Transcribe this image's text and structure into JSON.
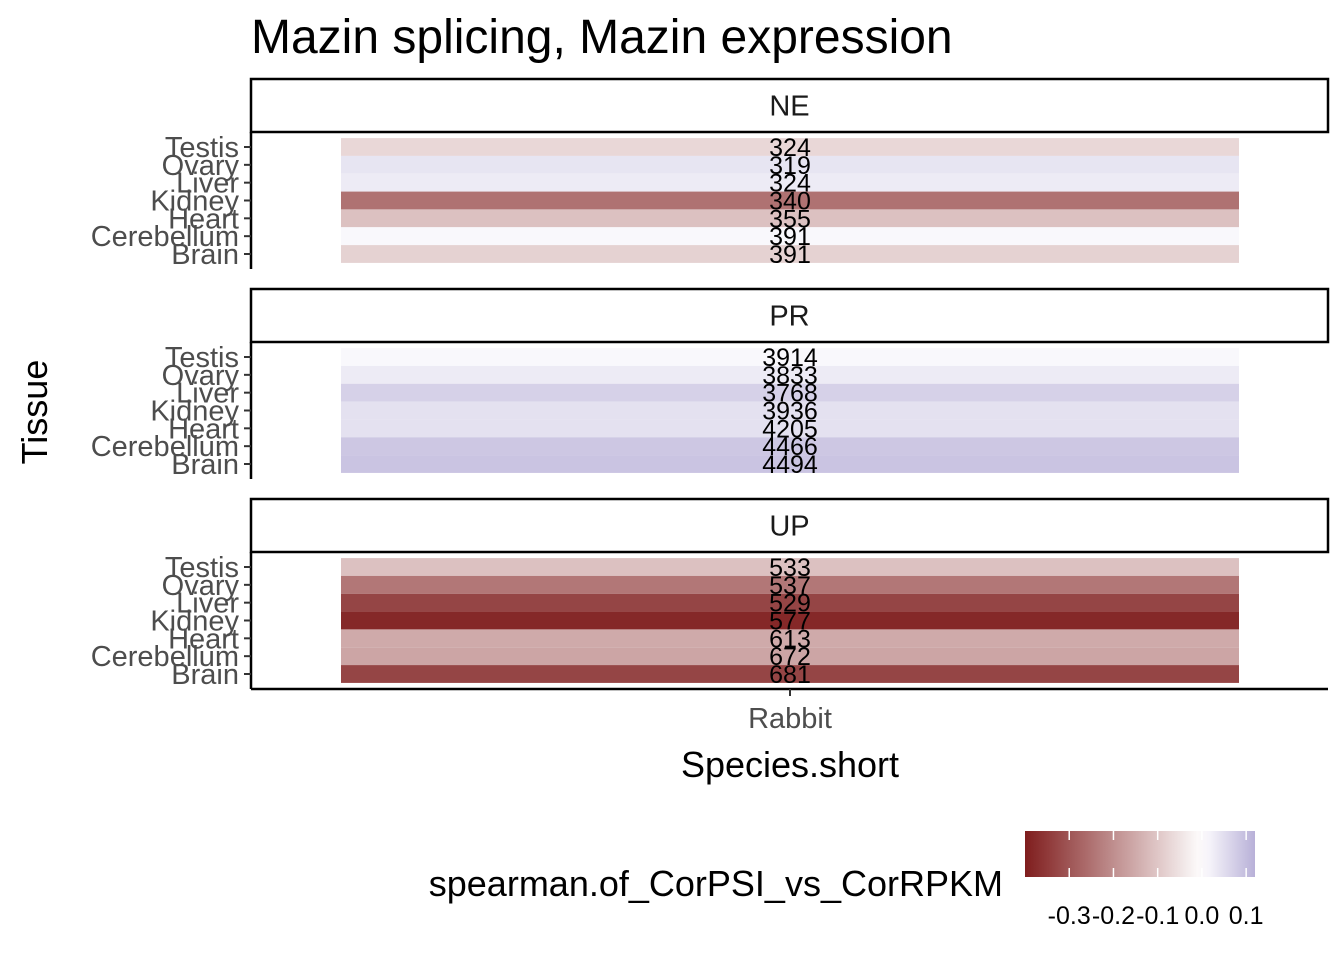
{
  "chart_data": {
    "type": "heatmap",
    "title": "Mazin splicing, Mazin expression",
    "xlabel": "Species.short",
    "ylabel": "Tissue",
    "x_categories": [
      "Rabbit"
    ],
    "y_categories": [
      "Testis",
      "Ovary",
      "Liver",
      "Kidney",
      "Heart",
      "Cerebellum",
      "Brain"
    ],
    "facets": [
      {
        "name": "NE",
        "cells": [
          {
            "tissue": "Testis",
            "label": "324",
            "value": -0.07
          },
          {
            "tissue": "Ovary",
            "label": "319",
            "value": 0.04
          },
          {
            "tissue": "Liver",
            "label": "324",
            "value": 0.03
          },
          {
            "tissue": "Kidney",
            "label": "340",
            "value": -0.25
          },
          {
            "tissue": "Heart",
            "label": "355",
            "value": -0.11
          },
          {
            "tissue": "Cerebellum",
            "label": "391",
            "value": 0.01
          },
          {
            "tissue": "Brain",
            "label": "391",
            "value": -0.08
          }
        ]
      },
      {
        "name": "PR",
        "cells": [
          {
            "tissue": "Testis",
            "label": "3914",
            "value": 0.01
          },
          {
            "tissue": "Ovary",
            "label": "3833",
            "value": 0.03
          },
          {
            "tissue": "Liver",
            "label": "3768",
            "value": 0.07
          },
          {
            "tissue": "Kidney",
            "label": "3936",
            "value": 0.045
          },
          {
            "tissue": "Heart",
            "label": "4205",
            "value": 0.045
          },
          {
            "tissue": "Cerebellum",
            "label": "4466",
            "value": 0.085
          },
          {
            "tissue": "Brain",
            "label": "4494",
            "value": 0.09
          }
        ]
      },
      {
        "name": "UP",
        "cells": [
          {
            "tissue": "Testis",
            "label": "533",
            "value": -0.11
          },
          {
            "tissue": "Ovary",
            "label": "537",
            "value": -0.24
          },
          {
            "tissue": "Liver",
            "label": "529",
            "value": -0.33
          },
          {
            "tissue": "Kidney",
            "label": "577",
            "value": -0.38
          },
          {
            "tissue": "Heart",
            "label": "613",
            "value": -0.15
          },
          {
            "tissue": "Cerebellum",
            "label": "672",
            "value": -0.16
          },
          {
            "tissue": "Brain",
            "label": "681",
            "value": -0.33
          }
        ]
      }
    ],
    "legend": {
      "title": "spearman.of_CorPSI_vs_CorRPKM",
      "placement": "bottom",
      "ticks": [
        -0.3,
        -0.2,
        -0.1,
        0.0,
        0.1
      ],
      "tick_labels": [
        "-0.3",
        "-0.2",
        "-0.1",
        "0.0",
        "0.1"
      ],
      "range": [
        -0.4,
        0.12
      ]
    },
    "colors": {
      "low": "#7f1d1d",
      "mid": "#ffffff",
      "high": "#b8b0d8"
    },
    "grid": false
  }
}
